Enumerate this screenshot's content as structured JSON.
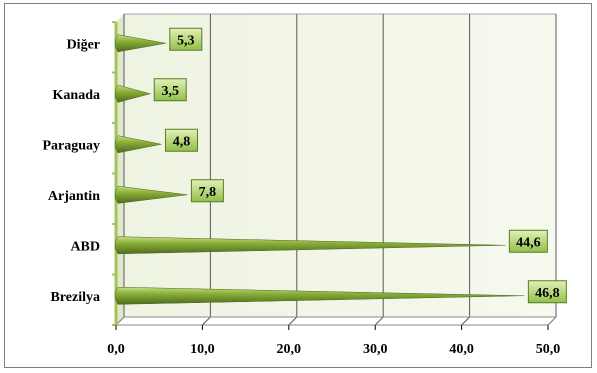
{
  "chart_data": {
    "type": "bar",
    "orientation": "horizontal",
    "categories": [
      "Brezilya",
      "ABD",
      "Arjantin",
      "Paraguay",
      "Kanada",
      "Diğer"
    ],
    "values": [
      46.8,
      44.6,
      7.8,
      4.8,
      3.5,
      5.3
    ],
    "value_labels": [
      "46,8",
      "44,6",
      "7,8",
      "4,8",
      "3,5",
      "5,3"
    ],
    "xlim": [
      0,
      50
    ],
    "x_ticks": [
      "0,0",
      "10,0",
      "20,0",
      "30,0",
      "40,0",
      "50,0"
    ],
    "title": "",
    "xlabel": "",
    "ylabel": "",
    "grid": true,
    "legend": "none",
    "colors": {
      "bar_dark": "#4f6b1e",
      "bar_mid": "#8db33a",
      "bar_light": "#c8dc8c",
      "plot_wall": "#eef3e2",
      "grid": "#595959",
      "label_box_top": "#e2f0b6",
      "label_box_bottom": "#92c04a",
      "label_box_border": "#5a7a2a",
      "axis_floor": "#a3c45a"
    }
  }
}
